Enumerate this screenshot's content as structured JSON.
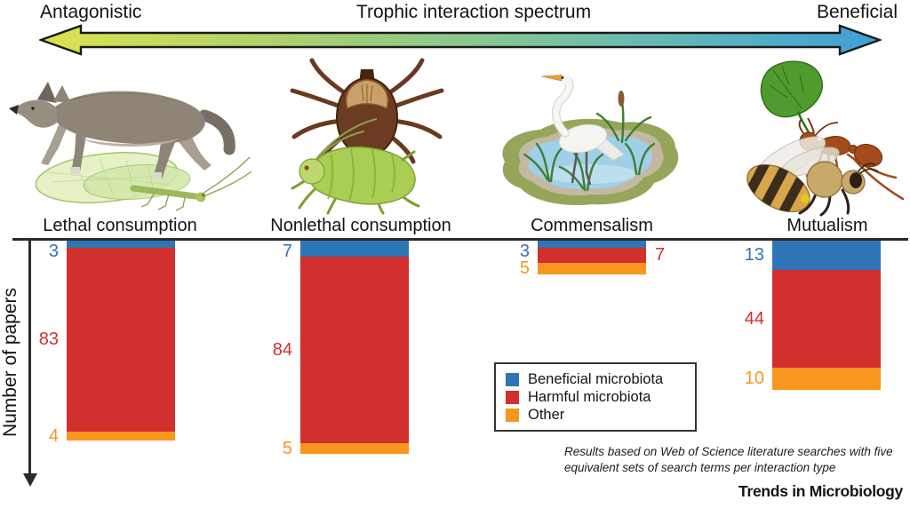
{
  "spectrum": {
    "left_label": "Antagonistic",
    "center_label": "Trophic interaction spectrum",
    "right_label": "Beneficial",
    "gradient_colors": [
      "#dde24f",
      "#a9d06f",
      "#84c694",
      "#5fb5bd",
      "#3f9fd7"
    ]
  },
  "illustrations": [
    {
      "icon": "wolf-lacewing-icon"
    },
    {
      "icon": "tick-aphid-icon"
    },
    {
      "icon": "egret-pond-icon"
    },
    {
      "icon": "ant-leaf-bee-icon"
    }
  ],
  "chart_data": {
    "type": "bar",
    "stacked": true,
    "orientation": "bars hang downward from top axis",
    "ylabel": "Number of papers",
    "grid": false,
    "categories": [
      "Lethal consumption",
      "Nonlethal consumption",
      "Commensalism",
      "Mutualism"
    ],
    "series": [
      {
        "name": "Beneficial microbiota",
        "color": "#2E75B6",
        "values": [
          3,
          7,
          3,
          13
        ],
        "label_sides": [
          "left",
          "left",
          "left",
          "left"
        ]
      },
      {
        "name": "Harmful microbiota",
        "color": "#D22F2F",
        "values": [
          83,
          84,
          7,
          44
        ],
        "label_sides": [
          "left",
          "left",
          "right",
          "left"
        ]
      },
      {
        "name": "Other",
        "color": "#F8961D",
        "values": [
          4,
          5,
          5,
          10
        ],
        "label_sides": [
          "left",
          "left",
          "left",
          "left"
        ]
      }
    ]
  },
  "axis": {
    "ylabel": "Number of papers"
  },
  "legend": {
    "items": [
      {
        "label": "Beneficial microbiota",
        "color": "#2E75B6"
      },
      {
        "label": "Harmful microbiota",
        "color": "#D22F2F"
      },
      {
        "label": "Other",
        "color": "#F8961D"
      }
    ]
  },
  "note": {
    "line1": "Results based on Web of Science literature searches with five",
    "line2": "equivalent sets of search terms per interaction type"
  },
  "journal": "Trends in Microbiology"
}
